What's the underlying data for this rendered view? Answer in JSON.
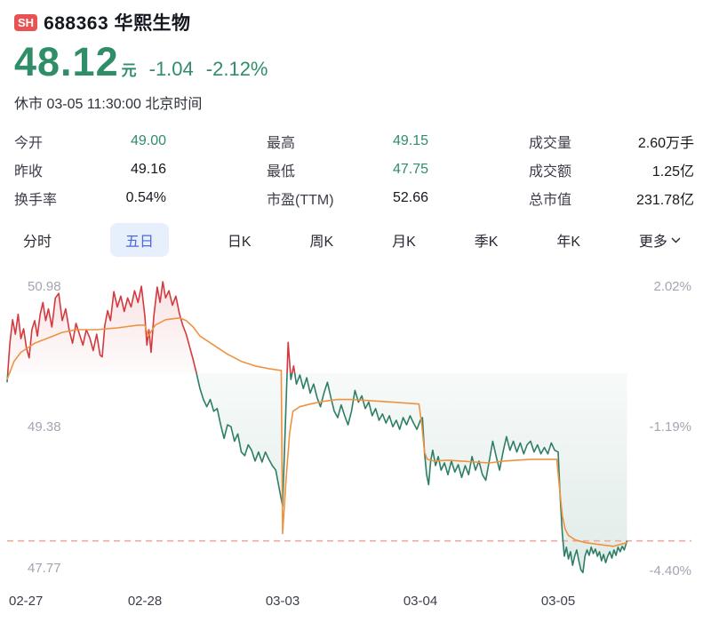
{
  "colors": {
    "up_red": "#d3393f",
    "down_green": "#2e7e67",
    "text_green": "#2f8e68",
    "avg_orange": "#ef9240",
    "price_dash": "#f3a89d",
    "badge_red": "#e85252",
    "tab_active_bg": "#e7eefc",
    "tab_active_text": "#4c68da",
    "axis_gray": "#a1a6b0"
  },
  "header": {
    "exchange_badge": "SH",
    "title": "688363 华熙生物",
    "price": "48.12",
    "currency": "元",
    "change": "-1.04",
    "change_pct": "-2.12%",
    "status": "休市 03-05 11:30:00 北京时间"
  },
  "stats": {
    "columns": [
      {
        "rows": [
          {
            "label": "今开",
            "value": "49.00"
          },
          {
            "label": "昨收",
            "value": "49.16"
          },
          {
            "label": "换手率",
            "value": "0.54%"
          }
        ]
      },
      {
        "rows": [
          {
            "label": "最高",
            "value": "49.15"
          },
          {
            "label": "最低",
            "value": "47.75"
          },
          {
            "label": "市盈(TTM)",
            "value": "52.66"
          }
        ]
      },
      {
        "rows": [
          {
            "label": "成交量",
            "value": "2.60万手"
          },
          {
            "label": "成交额",
            "value": "1.25亿"
          },
          {
            "label": "总市值",
            "value": "231.78亿"
          }
        ]
      }
    ]
  },
  "tabs": {
    "items": [
      {
        "label": "分时"
      },
      {
        "label": "五日"
      },
      {
        "label": "日K"
      },
      {
        "label": "周K"
      },
      {
        "label": "月K"
      },
      {
        "label": "季K"
      },
      {
        "label": "年K"
      },
      {
        "label": "更多"
      }
    ],
    "active_index": 1
  },
  "chart_data": {
    "type": "line",
    "subtype": "five-day-intraday",
    "x_axis_labels": [
      "02-27",
      "02-28",
      "03-03",
      "03-04",
      "03-05"
    ],
    "y_axis_price_labels": [
      "50.98",
      "49.38",
      "47.77"
    ],
    "y_axis_pct_labels": [
      "2.02%",
      "-1.19%",
      "-4.40%"
    ],
    "baseline_price": 49.97,
    "current_price": 48.12,
    "high": 50.98,
    "low": 47.77,
    "ylim": [
      47.5,
      51.05
    ],
    "day_width_fraction": 0.2,
    "data_end_fraction": 0.9,
    "grid": false,
    "legend": "none",
    "series": [
      {
        "name": "price",
        "points": [
          [
            0,
            49.87
          ],
          [
            0.004,
            50.3
          ],
          [
            0.008,
            50.56
          ],
          [
            0.012,
            50.4
          ],
          [
            0.016,
            50.62
          ],
          [
            0.02,
            50.35
          ],
          [
            0.024,
            50.46
          ],
          [
            0.028,
            50.25
          ],
          [
            0.032,
            50.14
          ],
          [
            0.036,
            50.45
          ],
          [
            0.04,
            50.55
          ],
          [
            0.044,
            50.38
          ],
          [
            0.048,
            50.62
          ],
          [
            0.052,
            50.75
          ],
          [
            0.056,
            50.55
          ],
          [
            0.06,
            50.68
          ],
          [
            0.065,
            50.48
          ],
          [
            0.07,
            50.8
          ],
          [
            0.075,
            50.85
          ],
          [
            0.08,
            50.55
          ],
          [
            0.085,
            50.68
          ],
          [
            0.09,
            50.45
          ],
          [
            0.095,
            50.3
          ],
          [
            0.1,
            50.52
          ],
          [
            0.105,
            50.4
          ],
          [
            0.11,
            50.28
          ],
          [
            0.115,
            50.45
          ],
          [
            0.12,
            50.36
          ],
          [
            0.125,
            50.22
          ],
          [
            0.13,
            50.4
          ],
          [
            0.135,
            50.17
          ],
          [
            0.138,
            50.15
          ],
          [
            0.142,
            50.5
          ],
          [
            0.146,
            50.66
          ],
          [
            0.15,
            50.55
          ],
          [
            0.155,
            50.87
          ],
          [
            0.16,
            50.7
          ],
          [
            0.165,
            50.82
          ],
          [
            0.17,
            50.65
          ],
          [
            0.175,
            50.8
          ],
          [
            0.18,
            50.7
          ],
          [
            0.185,
            50.88
          ],
          [
            0.19,
            50.75
          ],
          [
            0.195,
            50.93
          ],
          [
            0.2,
            50.6
          ],
          [
            0.203,
            50.28
          ],
          [
            0.206,
            50.45
          ],
          [
            0.209,
            50.2
          ],
          [
            0.213,
            50.6
          ],
          [
            0.218,
            50.92
          ],
          [
            0.222,
            50.75
          ],
          [
            0.226,
            50.98
          ],
          [
            0.23,
            50.8
          ],
          [
            0.235,
            50.88
          ],
          [
            0.24,
            50.72
          ],
          [
            0.245,
            50.82
          ],
          [
            0.25,
            50.63
          ],
          [
            0.255,
            50.5
          ],
          [
            0.26,
            50.4
          ],
          [
            0.265,
            50.26
          ],
          [
            0.27,
            50.12
          ],
          [
            0.275,
            49.97
          ],
          [
            0.28,
            49.8
          ],
          [
            0.285,
            49.68
          ],
          [
            0.29,
            49.6
          ],
          [
            0.295,
            49.68
          ],
          [
            0.3,
            49.55
          ],
          [
            0.305,
            49.58
          ],
          [
            0.31,
            49.4
          ],
          [
            0.315,
            49.25
          ],
          [
            0.32,
            49.4
          ],
          [
            0.325,
            49.38
          ],
          [
            0.33,
            49.22
          ],
          [
            0.335,
            49.3
          ],
          [
            0.34,
            49.1
          ],
          [
            0.345,
            49.06
          ],
          [
            0.35,
            49.18
          ],
          [
            0.355,
            49.12
          ],
          [
            0.36,
            49.0
          ],
          [
            0.365,
            49.1
          ],
          [
            0.37,
            48.99
          ],
          [
            0.375,
            49.1
          ],
          [
            0.38,
            49.02
          ],
          [
            0.385,
            48.95
          ],
          [
            0.39,
            48.9
          ],
          [
            0.395,
            48.7
          ],
          [
            0.4,
            48.5
          ],
          [
            0.404,
            49.4
          ],
          [
            0.408,
            50.31
          ],
          [
            0.412,
            49.9
          ],
          [
            0.416,
            50.05
          ],
          [
            0.42,
            49.85
          ],
          [
            0.425,
            49.95
          ],
          [
            0.43,
            49.8
          ],
          [
            0.435,
            49.92
          ],
          [
            0.44,
            49.75
          ],
          [
            0.445,
            49.85
          ],
          [
            0.45,
            49.7
          ],
          [
            0.455,
            49.6
          ],
          [
            0.46,
            49.75
          ],
          [
            0.465,
            49.87
          ],
          [
            0.47,
            49.7
          ],
          [
            0.475,
            49.55
          ],
          [
            0.48,
            49.48
          ],
          [
            0.485,
            49.62
          ],
          [
            0.49,
            49.5
          ],
          [
            0.495,
            49.4
          ],
          [
            0.5,
            49.55
          ],
          [
            0.505,
            49.78
          ],
          [
            0.51,
            49.65
          ],
          [
            0.515,
            49.72
          ],
          [
            0.52,
            49.58
          ],
          [
            0.525,
            49.65
          ],
          [
            0.53,
            49.5
          ],
          [
            0.535,
            49.58
          ],
          [
            0.54,
            49.45
          ],
          [
            0.545,
            49.52
          ],
          [
            0.55,
            49.42
          ],
          [
            0.555,
            49.5
          ],
          [
            0.56,
            49.38
          ],
          [
            0.565,
            49.45
          ],
          [
            0.57,
            49.35
          ],
          [
            0.575,
            49.48
          ],
          [
            0.58,
            49.4
          ],
          [
            0.585,
            49.5
          ],
          [
            0.59,
            49.42
          ],
          [
            0.595,
            49.35
          ],
          [
            0.6,
            49.45
          ],
          [
            0.603,
            49.48
          ],
          [
            0.606,
            49.1
          ],
          [
            0.609,
            48.85
          ],
          [
            0.612,
            48.74
          ],
          [
            0.615,
            49.0
          ],
          [
            0.618,
            49.12
          ],
          [
            0.622,
            48.95
          ],
          [
            0.626,
            49.05
          ],
          [
            0.63,
            48.9
          ],
          [
            0.635,
            48.98
          ],
          [
            0.64,
            48.85
          ],
          [
            0.645,
            49.0
          ],
          [
            0.65,
            48.88
          ],
          [
            0.655,
            48.96
          ],
          [
            0.66,
            48.82
          ],
          [
            0.665,
            48.95
          ],
          [
            0.67,
            48.85
          ],
          [
            0.675,
            49.05
          ],
          [
            0.68,
            48.9
          ],
          [
            0.685,
            49.0
          ],
          [
            0.69,
            48.85
          ],
          [
            0.695,
            48.79
          ],
          [
            0.7,
            49.0
          ],
          [
            0.705,
            49.22
          ],
          [
            0.71,
            49.05
          ],
          [
            0.715,
            48.9
          ],
          [
            0.72,
            49.1
          ],
          [
            0.725,
            49.27
          ],
          [
            0.73,
            49.12
          ],
          [
            0.735,
            49.22
          ],
          [
            0.74,
            49.1
          ],
          [
            0.745,
            49.2
          ],
          [
            0.75,
            49.08
          ],
          [
            0.755,
            49.18
          ],
          [
            0.76,
            49.22
          ],
          [
            0.765,
            49.1
          ],
          [
            0.77,
            49.18
          ],
          [
            0.775,
            49.08
          ],
          [
            0.78,
            49.15
          ],
          [
            0.785,
            49.08
          ],
          [
            0.79,
            49.2
          ],
          [
            0.795,
            49.12
          ],
          [
            0.8,
            49.1
          ],
          [
            0.803,
            48.6
          ],
          [
            0.806,
            48.2
          ],
          [
            0.809,
            47.95
          ],
          [
            0.812,
            48.05
          ],
          [
            0.815,
            47.92
          ],
          [
            0.818,
            48.0
          ],
          [
            0.821,
            47.85
          ],
          [
            0.824,
            47.95
          ],
          [
            0.827,
            48.02
          ],
          [
            0.83,
            47.9
          ],
          [
            0.833,
            47.8
          ],
          [
            0.836,
            47.77
          ],
          [
            0.839,
            47.95
          ],
          [
            0.842,
            48.02
          ],
          [
            0.845,
            47.96
          ],
          [
            0.848,
            48.05
          ],
          [
            0.851,
            47.98
          ],
          [
            0.854,
            48.03
          ],
          [
            0.857,
            47.95
          ],
          [
            0.86,
            48.0
          ],
          [
            0.863,
            47.9
          ],
          [
            0.866,
            47.97
          ],
          [
            0.869,
            47.88
          ],
          [
            0.872,
            47.95
          ],
          [
            0.875,
            48.0
          ],
          [
            0.878,
            47.93
          ],
          [
            0.881,
            48.02
          ],
          [
            0.884,
            47.96
          ],
          [
            0.887,
            48.05
          ],
          [
            0.89,
            48.0
          ],
          [
            0.893,
            48.06
          ],
          [
            0.896,
            48.02
          ],
          [
            0.9,
            48.12
          ]
        ]
      },
      {
        "name": "avg",
        "points": [
          [
            0,
            49.9
          ],
          [
            0.01,
            50.1
          ],
          [
            0.02,
            50.2
          ],
          [
            0.04,
            50.3
          ],
          [
            0.06,
            50.36
          ],
          [
            0.08,
            50.42
          ],
          [
            0.1,
            50.45
          ],
          [
            0.13,
            50.45
          ],
          [
            0.16,
            50.47
          ],
          [
            0.19,
            50.5
          ],
          [
            0.2,
            50.5
          ],
          [
            0.205,
            50.38
          ],
          [
            0.215,
            50.5
          ],
          [
            0.23,
            50.56
          ],
          [
            0.25,
            50.58
          ],
          [
            0.26,
            50.55
          ],
          [
            0.27,
            50.48
          ],
          [
            0.28,
            50.38
          ],
          [
            0.3,
            50.28
          ],
          [
            0.32,
            50.18
          ],
          [
            0.34,
            50.1
          ],
          [
            0.36,
            50.05
          ],
          [
            0.38,
            50.02
          ],
          [
            0.398,
            50.0
          ],
          [
            0.4,
            48.2
          ],
          [
            0.405,
            48.8
          ],
          [
            0.41,
            49.3
          ],
          [
            0.415,
            49.55
          ],
          [
            0.425,
            49.6
          ],
          [
            0.44,
            49.63
          ],
          [
            0.46,
            49.66
          ],
          [
            0.48,
            49.68
          ],
          [
            0.5,
            49.68
          ],
          [
            0.52,
            49.67
          ],
          [
            0.54,
            49.66
          ],
          [
            0.56,
            49.65
          ],
          [
            0.58,
            49.64
          ],
          [
            0.598,
            49.63
          ],
          [
            0.602,
            49.4
          ],
          [
            0.606,
            49.1
          ],
          [
            0.61,
            49.02
          ],
          [
            0.62,
            49.0
          ],
          [
            0.64,
            49.01
          ],
          [
            0.66,
            49.0
          ],
          [
            0.68,
            48.99
          ],
          [
            0.7,
            48.98
          ],
          [
            0.72,
            49.0
          ],
          [
            0.74,
            49.01
          ],
          [
            0.76,
            49.02
          ],
          [
            0.78,
            49.02
          ],
          [
            0.798,
            49.02
          ],
          [
            0.802,
            48.7
          ],
          [
            0.806,
            48.4
          ],
          [
            0.81,
            48.25
          ],
          [
            0.815,
            48.18
          ],
          [
            0.825,
            48.13
          ],
          [
            0.84,
            48.1
          ],
          [
            0.86,
            48.08
          ],
          [
            0.88,
            48.06
          ],
          [
            0.9,
            48.1
          ]
        ]
      }
    ]
  }
}
